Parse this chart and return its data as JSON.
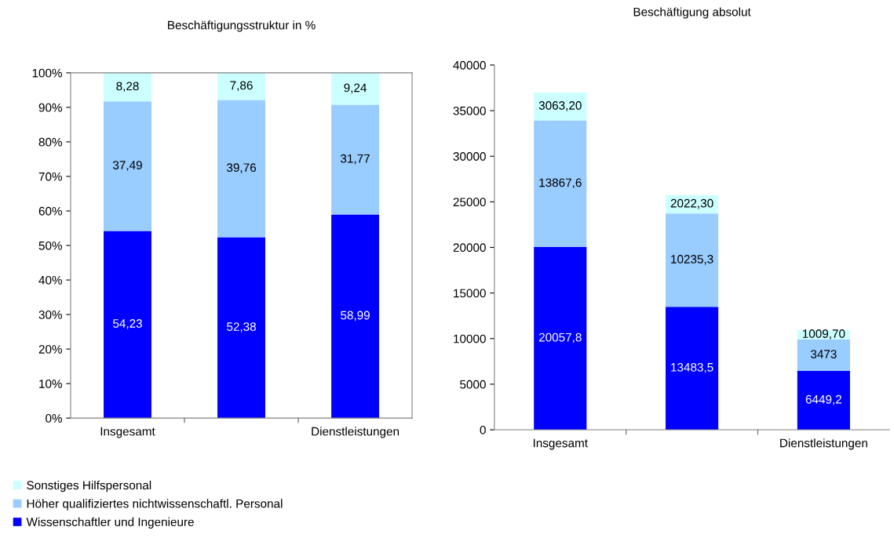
{
  "chart_data": [
    {
      "type": "bar",
      "title": "Beschäftigungsstruktur in %",
      "categories": [
        "Insgesamt",
        null,
        "Dienstleistungen"
      ],
      "stacked": true,
      "ylim": [
        0,
        100
      ],
      "yticks": [
        {
          "value": 0,
          "label": "0%"
        },
        {
          "value": 10,
          "label": "10%"
        },
        {
          "value": 20,
          "label": "20%"
        },
        {
          "value": 30,
          "label": "30%"
        },
        {
          "value": 40,
          "label": "40%"
        },
        {
          "value": 50,
          "label": "50%"
        },
        {
          "value": 60,
          "label": "60%"
        },
        {
          "value": 70,
          "label": "70%"
        },
        {
          "value": 80,
          "label": "80%"
        },
        {
          "value": 90,
          "label": "90%"
        },
        {
          "value": 100,
          "label": "100%"
        }
      ],
      "grid": false,
      "legend": "bottom",
      "series": [
        {
          "name": "Wissenschaftler und Ingenieure",
          "color": "#0000ff",
          "values": [
            54.23,
            52.38,
            58.99
          ],
          "value_labels": [
            "54,23",
            "52,38",
            "58,99"
          ]
        },
        {
          "name": "Höher qualifiziertes nichtwissenschaftl. Personal",
          "color": "#99ccff",
          "values": [
            37.49,
            39.76,
            31.77
          ],
          "value_labels": [
            "37,49",
            "39,76",
            "31,77"
          ]
        },
        {
          "name": "Sonstiges Hilfspersonal",
          "color": "#ccffff",
          "values": [
            8.28,
            7.86,
            9.24
          ],
          "value_labels": [
            "8,28",
            "7,86",
            "9,24"
          ]
        }
      ]
    },
    {
      "type": "bar",
      "title": "Beschäftigung absolut",
      "categories": [
        "Insgesamt",
        null,
        "Dienstleistungen"
      ],
      "stacked": true,
      "ylim": [
        0,
        40000
      ],
      "yticks": [
        0,
        5000,
        10000,
        15000,
        20000,
        25000,
        30000,
        35000,
        40000
      ],
      "grid": false,
      "series": [
        {
          "color": "#0000ff",
          "values": [
            20057.8,
            13483.5,
            6449.2
          ],
          "value_labels": [
            "20057,8",
            "13483,5",
            "6449,2"
          ]
        },
        {
          "color": "#99ccff",
          "values": [
            13867.6,
            10235.3,
            3473
          ],
          "value_labels": [
            "13867,6",
            "10235,3",
            "3473"
          ]
        },
        {
          "color": "#ccffff",
          "values": [
            3063.2,
            2022.3,
            1009.7
          ],
          "value_labels": [
            "3063,20",
            "2022,30",
            "1009,70"
          ]
        }
      ]
    }
  ]
}
